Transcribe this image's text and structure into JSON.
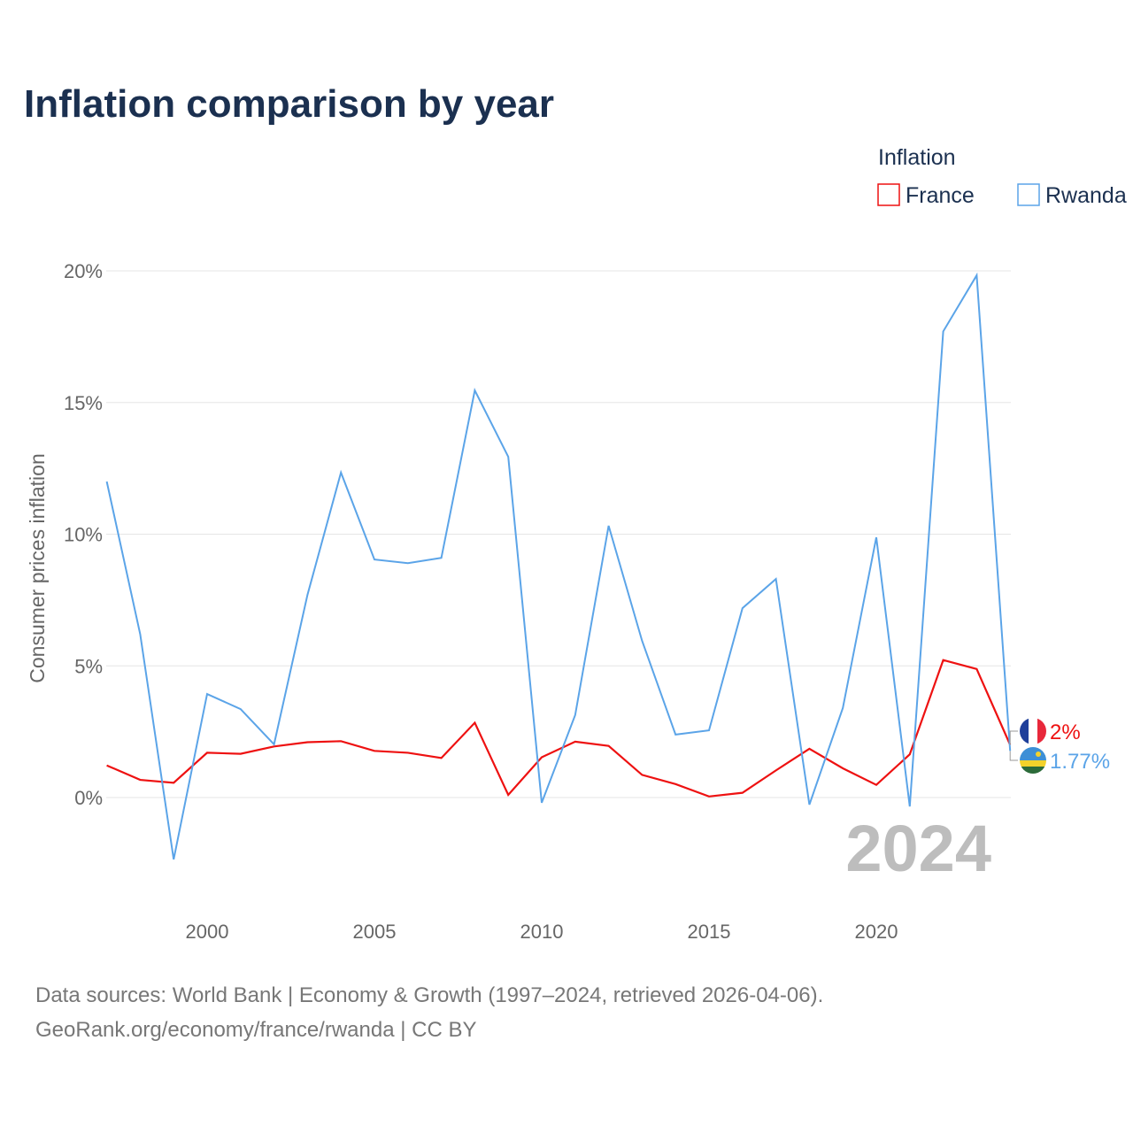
{
  "chart_data": {
    "type": "line",
    "title": "Inflation comparison by year",
    "ylabel": "Consumer prices inflation",
    "xlabel": "",
    "legend_title": "Inflation",
    "legend_position": "top-right",
    "xlim": [
      1997,
      2024
    ],
    "ylim": [
      -3.5,
      20.5
    ],
    "x_ticks": [
      2000,
      2005,
      2010,
      2015,
      2020
    ],
    "x_tick_labels": [
      "2000",
      "2005",
      "2010",
      "2015",
      "2020"
    ],
    "y_ticks": [
      0,
      5,
      10,
      15,
      20
    ],
    "y_tick_labels": [
      "0%",
      "5%",
      "10%",
      "15%",
      "20%"
    ],
    "grid": true,
    "year_watermark": "2024",
    "x": [
      1997,
      1998,
      1999,
      2000,
      2001,
      2002,
      2003,
      2004,
      2005,
      2006,
      2007,
      2008,
      2009,
      2010,
      2011,
      2012,
      2013,
      2014,
      2015,
      2016,
      2017,
      2018,
      2019,
      2020,
      2021,
      2022,
      2023,
      2024
    ],
    "series": [
      {
        "name": "France",
        "color": "#ee1111",
        "end_label": "2%",
        "values": [
          1.22,
          0.67,
          0.56,
          1.7,
          1.66,
          1.94,
          2.1,
          2.14,
          1.77,
          1.7,
          1.5,
          2.84,
          0.1,
          1.53,
          2.12,
          1.96,
          0.86,
          0.51,
          0.04,
          0.18,
          1.03,
          1.85,
          1.11,
          0.48,
          1.64,
          5.22,
          4.88,
          2.0
        ]
      },
      {
        "name": "Rwanda",
        "color": "#5ba4e8",
        "end_label": "1.77%",
        "values": [
          12.0,
          6.2,
          -2.35,
          3.93,
          3.36,
          2.02,
          7.7,
          12.34,
          9.04,
          8.9,
          9.1,
          15.46,
          12.94,
          -0.2,
          3.13,
          10.32,
          5.95,
          2.39,
          2.55,
          7.19,
          8.3,
          -0.27,
          3.4,
          9.88,
          -0.34,
          17.7,
          19.83,
          1.77
        ]
      }
    ]
  },
  "footer": {
    "line1": "Data sources: World Bank | Economy & Growth (1997–2024, retrieved 2026-04-06).",
    "line2": "GeoRank.org/economy/france/rwanda | CC BY"
  }
}
